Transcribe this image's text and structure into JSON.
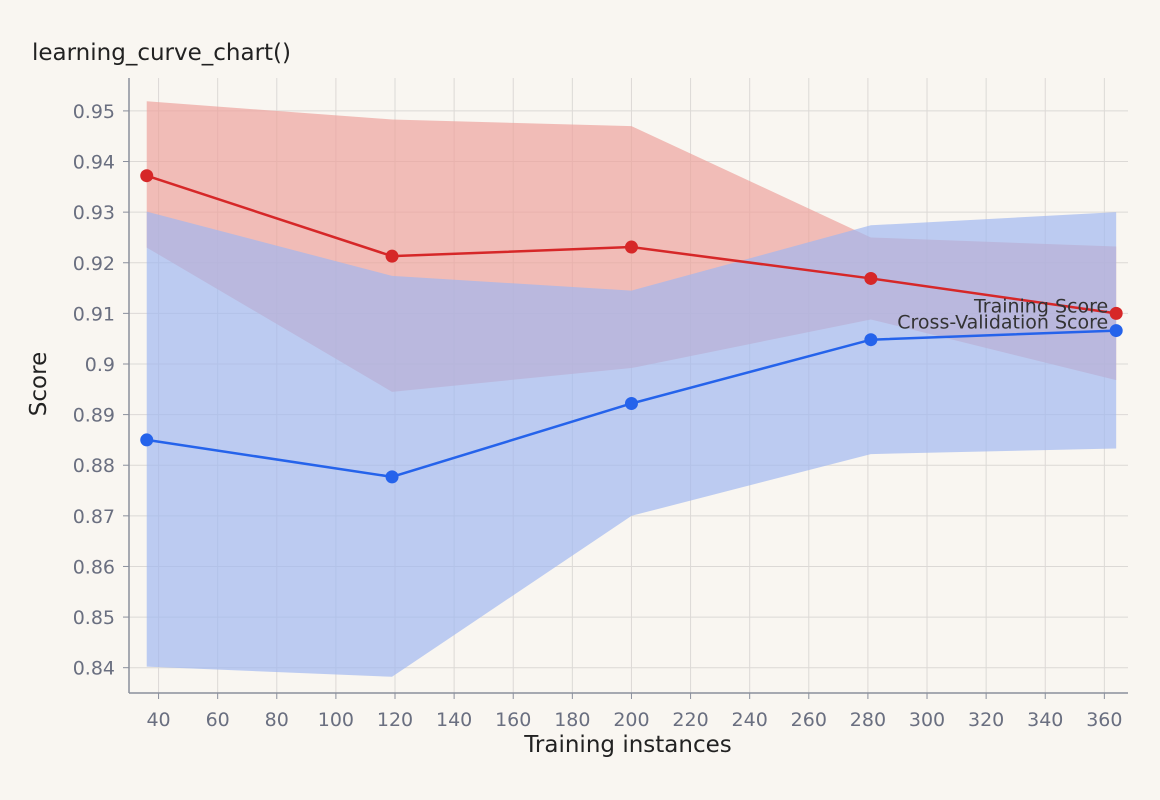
{
  "chart_data": {
    "type": "line",
    "title": "learning_curve_chart()",
    "xlabel": "Training instances",
    "ylabel": "Score",
    "xlim": [
      30,
      368
    ],
    "ylim": [
      0.835,
      0.9565
    ],
    "x_ticks": [
      "40",
      "60",
      "80",
      "100",
      "120",
      "140",
      "160",
      "180",
      "200",
      "220",
      "240",
      "260",
      "280",
      "300",
      "320",
      "340",
      "360"
    ],
    "y_ticks": [
      "0.84",
      "0.85",
      "0.86",
      "0.87",
      "0.88",
      "0.89",
      "0.9",
      "0.91",
      "0.92",
      "0.93",
      "0.94",
      "0.95"
    ],
    "grid": true,
    "x": [
      36,
      119,
      200,
      281,
      364
    ],
    "series": [
      {
        "name": "Training Score",
        "values": [
          0.9372,
          0.9213,
          0.9231,
          0.9169,
          0.91
        ],
        "lower": [
          0.923,
          0.8945,
          0.8992,
          0.9088,
          0.8968
        ],
        "upper": [
          0.9519,
          0.9483,
          0.947,
          0.925,
          0.9232
        ],
        "color": "#d62728",
        "band_color": "#eea09b"
      },
      {
        "name": "Cross-Validation Score",
        "values": [
          0.885,
          0.8777,
          0.8922,
          0.9048,
          0.9066
        ],
        "lower": [
          0.8402,
          0.8382,
          0.87,
          0.8822,
          0.8833
        ],
        "upper": [
          0.9301,
          0.9174,
          0.9145,
          0.9274,
          0.93
        ],
        "color": "#2563eb",
        "band_color": "#9fb7f0"
      }
    ]
  }
}
